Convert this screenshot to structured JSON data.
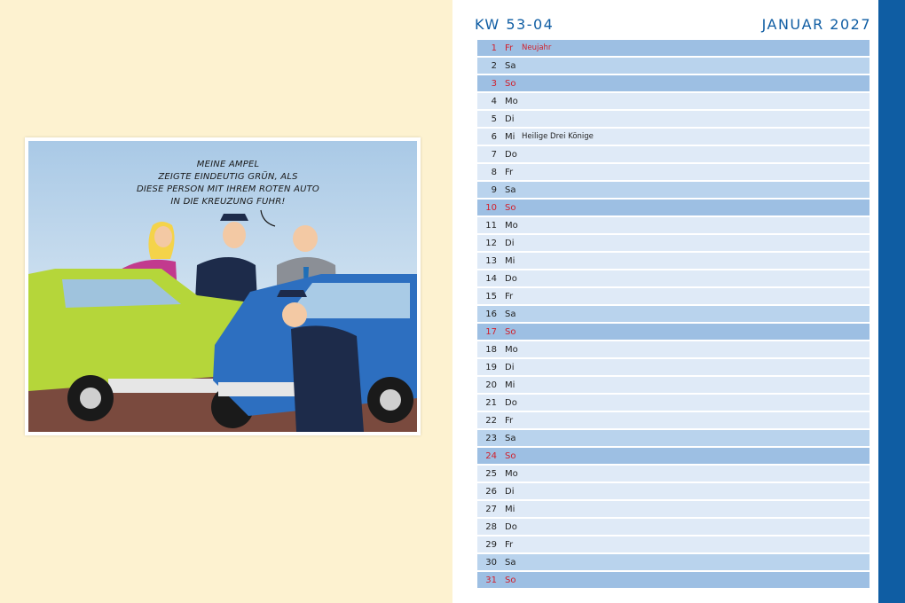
{
  "cartoon": {
    "speech_lines": [
      "MEINE AMPEL",
      "ZEIGTE EINDEUTIG GRÜN, ALS",
      "DIESE PERSON MIT IHREM ROTEN AUTO",
      "IN DIE KREUZUNG FUHR!"
    ]
  },
  "calendar": {
    "week": "KW 53-04",
    "month": "JANUAR 2027",
    "days": [
      {
        "num": "1",
        "wd": "Fr",
        "holiday": "Neujahr",
        "type": "sun",
        "red": true
      },
      {
        "num": "2",
        "wd": "Sa",
        "holiday": "",
        "type": "sat",
        "red": false
      },
      {
        "num": "3",
        "wd": "So",
        "holiday": "",
        "type": "sun",
        "red": true
      },
      {
        "num": "4",
        "wd": "Mo",
        "holiday": "",
        "type": "weekday",
        "red": false
      },
      {
        "num": "5",
        "wd": "Di",
        "holiday": "",
        "type": "weekday",
        "red": false
      },
      {
        "num": "6",
        "wd": "Mi",
        "holiday": "Heilige Drei Könige",
        "type": "weekday",
        "red": false
      },
      {
        "num": "7",
        "wd": "Do",
        "holiday": "",
        "type": "weekday",
        "red": false
      },
      {
        "num": "8",
        "wd": "Fr",
        "holiday": "",
        "type": "weekday",
        "red": false
      },
      {
        "num": "9",
        "wd": "Sa",
        "holiday": "",
        "type": "sat",
        "red": false
      },
      {
        "num": "10",
        "wd": "So",
        "holiday": "",
        "type": "sun",
        "red": true
      },
      {
        "num": "11",
        "wd": "Mo",
        "holiday": "",
        "type": "weekday",
        "red": false
      },
      {
        "num": "12",
        "wd": "Di",
        "holiday": "",
        "type": "weekday",
        "red": false
      },
      {
        "num": "13",
        "wd": "Mi",
        "holiday": "",
        "type": "weekday",
        "red": false
      },
      {
        "num": "14",
        "wd": "Do",
        "holiday": "",
        "type": "weekday",
        "red": false
      },
      {
        "num": "15",
        "wd": "Fr",
        "holiday": "",
        "type": "weekday",
        "red": false
      },
      {
        "num": "16",
        "wd": "Sa",
        "holiday": "",
        "type": "sat",
        "red": false
      },
      {
        "num": "17",
        "wd": "So",
        "holiday": "",
        "type": "sun",
        "red": true
      },
      {
        "num": "18",
        "wd": "Mo",
        "holiday": "",
        "type": "weekday",
        "red": false
      },
      {
        "num": "19",
        "wd": "Di",
        "holiday": "",
        "type": "weekday",
        "red": false
      },
      {
        "num": "20",
        "wd": "Mi",
        "holiday": "",
        "type": "weekday",
        "red": false
      },
      {
        "num": "21",
        "wd": "Do",
        "holiday": "",
        "type": "weekday",
        "red": false
      },
      {
        "num": "22",
        "wd": "Fr",
        "holiday": "",
        "type": "weekday",
        "red": false
      },
      {
        "num": "23",
        "wd": "Sa",
        "holiday": "",
        "type": "sat",
        "red": false
      },
      {
        "num": "24",
        "wd": "So",
        "holiday": "",
        "type": "sun",
        "red": true
      },
      {
        "num": "25",
        "wd": "Mo",
        "holiday": "",
        "type": "weekday",
        "red": false
      },
      {
        "num": "26",
        "wd": "Di",
        "holiday": "",
        "type": "weekday",
        "red": false
      },
      {
        "num": "27",
        "wd": "Mi",
        "holiday": "",
        "type": "weekday",
        "red": false
      },
      {
        "num": "28",
        "wd": "Do",
        "holiday": "",
        "type": "weekday",
        "red": false
      },
      {
        "num": "29",
        "wd": "Fr",
        "holiday": "",
        "type": "weekday",
        "red": false
      },
      {
        "num": "30",
        "wd": "Sa",
        "holiday": "",
        "type": "sat",
        "red": false
      },
      {
        "num": "31",
        "wd": "So",
        "holiday": "",
        "type": "sun",
        "red": true
      }
    ]
  },
  "colors": {
    "accent_blue": "#0f5da3",
    "holiday_red": "#d11f2b",
    "left_page_bg": "#fdf2d0"
  }
}
